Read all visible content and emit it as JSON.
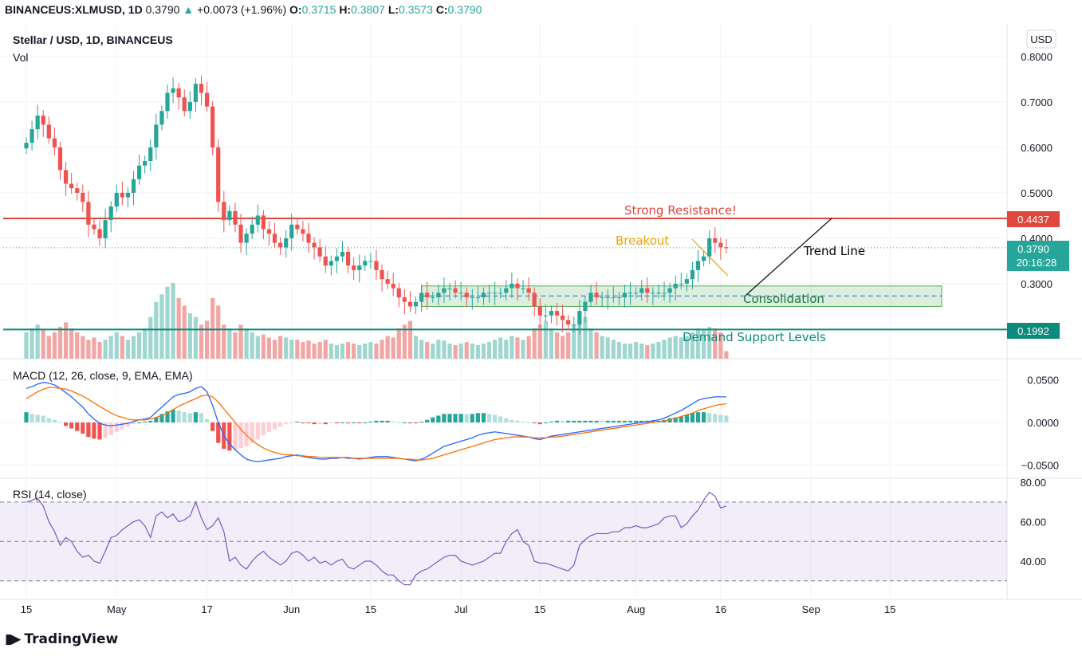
{
  "header": {
    "symbol": "BINANCEUS:XLMUSD, 1D",
    "last": "0.3790",
    "arrow": "▲",
    "change": "+0.0073 (+1.96%)",
    "o_label": "O:",
    "o": "0.3715",
    "h_label": "H:",
    "h": "0.3807",
    "l_label": "L:",
    "l": "0.3573",
    "c_label": "C:",
    "c": "0.3790"
  },
  "pane_titles": {
    "main": "Stellar / USD, 1D, BINANCEUS",
    "vol": "Vol",
    "macd": "MACD (12, 26, close, 9, EMA, EMA)",
    "rsi": "RSI (14, close)"
  },
  "currency_button": "USD",
  "logo_text": "TradingView",
  "colors": {
    "up": "#26a69a",
    "down": "#ef5350",
    "resistance": "#e0473e",
    "support": "#0b8a7d",
    "breakout": "#f0a400",
    "macd": "#2962ff",
    "signal": "#ff6d00",
    "rsi": "#7e57c2"
  },
  "annotations": {
    "resistance": "Strong Resistance!",
    "breakout": "Breakout",
    "trend_line": "Trend Line",
    "consolidation": "Consolidation",
    "demand": "Demand Support Levels"
  },
  "price_labels": {
    "resistance": "0.4437",
    "current": "0.3790",
    "countdown": "20:16:28",
    "support": "0.1992"
  },
  "chart_data": {
    "type": "candlestick",
    "title": "Stellar / USD, 1D, BINANCEUS",
    "price_axis_ticks": [
      "0.8000",
      "0.7000",
      "0.6000",
      "0.5000",
      "0.4000",
      "0.3000"
    ],
    "macd_axis_ticks": [
      "0.0500",
      "0.0000",
      "−0.0500"
    ],
    "rsi_axis_ticks": [
      "80.00",
      "60.00",
      "40.00"
    ],
    "x_ticks": [
      {
        "label": "15",
        "day": 0
      },
      {
        "label": "May",
        "day": 16
      },
      {
        "label": "17",
        "day": 32
      },
      {
        "label": "Jun",
        "day": 47
      },
      {
        "label": "15",
        "day": 61
      },
      {
        "label": "Jul",
        "day": 77
      },
      {
        "label": "15",
        "day": 91
      },
      {
        "label": "Aug",
        "day": 108
      },
      {
        "label": "16",
        "day": 123
      },
      {
        "label": "Sep",
        "day": 139
      },
      {
        "label": "15",
        "day": 153
      }
    ],
    "price_ylim": [
      0.19,
      0.83
    ],
    "series": [
      {
        "name": "XLMUSD",
        "close_by_day": [
          0.61,
          0.64,
          0.67,
          0.65,
          0.62,
          0.6,
          0.55,
          0.52,
          0.51,
          0.5,
          0.48,
          0.43,
          0.42,
          0.4,
          0.44,
          0.47,
          0.5,
          0.49,
          0.5,
          0.53,
          0.56,
          0.57,
          0.6,
          0.65,
          0.68,
          0.72,
          0.73,
          0.71,
          0.68,
          0.7,
          0.74,
          0.72,
          0.69,
          0.6,
          0.48,
          0.44,
          0.46,
          0.43,
          0.39,
          0.41,
          0.43,
          0.45,
          0.42,
          0.41,
          0.39,
          0.38,
          0.4,
          0.43,
          0.42,
          0.41,
          0.39,
          0.38,
          0.36,
          0.34,
          0.35,
          0.36,
          0.37,
          0.34,
          0.33,
          0.34,
          0.35,
          0.35,
          0.33,
          0.31,
          0.3,
          0.29,
          0.27,
          0.26,
          0.25,
          0.26,
          0.28,
          0.27,
          0.27,
          0.28,
          0.29,
          0.29,
          0.28,
          0.28,
          0.27,
          0.27,
          0.27,
          0.28,
          0.28,
          0.28,
          0.28,
          0.29,
          0.3,
          0.29,
          0.29,
          0.28,
          0.25,
          0.23,
          0.23,
          0.24,
          0.23,
          0.22,
          0.21,
          0.21,
          0.24,
          0.26,
          0.28,
          0.27,
          0.27,
          0.27,
          0.27,
          0.27,
          0.28,
          0.28,
          0.28,
          0.29,
          0.28,
          0.28,
          0.28,
          0.28,
          0.29,
          0.3,
          0.3,
          0.31,
          0.33,
          0.35,
          0.36,
          0.4,
          0.39,
          0.38,
          0.379
        ]
      }
    ],
    "volume_relative": [
      0.35,
      0.4,
      0.45,
      0.38,
      0.3,
      0.35,
      0.42,
      0.48,
      0.4,
      0.35,
      0.3,
      0.25,
      0.28,
      0.22,
      0.25,
      0.3,
      0.35,
      0.3,
      0.25,
      0.3,
      0.35,
      0.4,
      0.55,
      0.75,
      0.85,
      0.95,
      1.0,
      0.8,
      0.7,
      0.6,
      0.55,
      0.45,
      0.5,
      0.8,
      0.7,
      0.45,
      0.4,
      0.35,
      0.45,
      0.4,
      0.35,
      0.3,
      0.32,
      0.28,
      0.25,
      0.3,
      0.28,
      0.25,
      0.25,
      0.22,
      0.24,
      0.2,
      0.22,
      0.25,
      0.2,
      0.18,
      0.2,
      0.22,
      0.2,
      0.18,
      0.2,
      0.22,
      0.2,
      0.25,
      0.3,
      0.28,
      0.4,
      0.45,
      0.5,
      0.3,
      0.25,
      0.22,
      0.2,
      0.25,
      0.24,
      0.2,
      0.18,
      0.2,
      0.22,
      0.2,
      0.18,
      0.2,
      0.22,
      0.25,
      0.28,
      0.25,
      0.3,
      0.28,
      0.25,
      0.3,
      0.4,
      0.45,
      0.5,
      0.4,
      0.35,
      0.3,
      0.35,
      0.45,
      0.5,
      0.55,
      0.4,
      0.35,
      0.3,
      0.28,
      0.25,
      0.22,
      0.2,
      0.2,
      0.22,
      0.2,
      0.18,
      0.2,
      0.22,
      0.25,
      0.28,
      0.3,
      0.28,
      0.3,
      0.35,
      0.4,
      0.38,
      0.42,
      0.4,
      0.35,
      0.1
    ],
    "macd_line": [
      0.04,
      0.042,
      0.045,
      0.047,
      0.046,
      0.044,
      0.04,
      0.035,
      0.03,
      0.024,
      0.018,
      0.01,
      0.004,
      -0.001,
      -0.003,
      -0.004,
      -0.003,
      -0.002,
      -0.001,
      0.001,
      0.003,
      0.004,
      0.006,
      0.012,
      0.018,
      0.024,
      0.03,
      0.033,
      0.034,
      0.036,
      0.04,
      0.042,
      0.036,
      0.02,
      0.0,
      -0.015,
      -0.025,
      -0.032,
      -0.038,
      -0.043,
      -0.045,
      -0.046,
      -0.045,
      -0.044,
      -0.043,
      -0.042,
      -0.04,
      -0.039,
      -0.038,
      -0.04,
      -0.041,
      -0.042,
      -0.043,
      -0.043,
      -0.042,
      -0.042,
      -0.041,
      -0.042,
      -0.042,
      -0.043,
      -0.042,
      -0.041,
      -0.04,
      -0.04,
      -0.04,
      -0.041,
      -0.042,
      -0.043,
      -0.044,
      -0.045,
      -0.043,
      -0.04,
      -0.036,
      -0.032,
      -0.028,
      -0.026,
      -0.024,
      -0.022,
      -0.02,
      -0.018,
      -0.015,
      -0.013,
      -0.012,
      -0.011,
      -0.012,
      -0.013,
      -0.014,
      -0.015,
      -0.016,
      -0.017,
      -0.019,
      -0.02,
      -0.018,
      -0.016,
      -0.015,
      -0.014,
      -0.013,
      -0.012,
      -0.011,
      -0.01,
      -0.009,
      -0.008,
      -0.007,
      -0.006,
      -0.005,
      -0.004,
      -0.003,
      -0.002,
      -0.001,
      0.0,
      0.001,
      0.002,
      0.003,
      0.005,
      0.008,
      0.011,
      0.014,
      0.018,
      0.022,
      0.026,
      0.028,
      0.029,
      0.03,
      0.03,
      0.03
    ],
    "signal_line": [
      0.028,
      0.032,
      0.036,
      0.039,
      0.041,
      0.041,
      0.04,
      0.039,
      0.037,
      0.034,
      0.031,
      0.027,
      0.023,
      0.019,
      0.015,
      0.011,
      0.008,
      0.006,
      0.004,
      0.003,
      0.003,
      0.003,
      0.004,
      0.006,
      0.008,
      0.011,
      0.015,
      0.019,
      0.022,
      0.025,
      0.028,
      0.031,
      0.032,
      0.03,
      0.024,
      0.016,
      0.008,
      0.0,
      -0.008,
      -0.015,
      -0.021,
      -0.026,
      -0.03,
      -0.033,
      -0.035,
      -0.037,
      -0.038,
      -0.038,
      -0.039,
      -0.039,
      -0.04,
      -0.04,
      -0.041,
      -0.041,
      -0.041,
      -0.041,
      -0.041,
      -0.041,
      -0.042,
      -0.042,
      -0.042,
      -0.042,
      -0.042,
      -0.042,
      -0.042,
      -0.042,
      -0.042,
      -0.043,
      -0.043,
      -0.044,
      -0.044,
      -0.043,
      -0.042,
      -0.04,
      -0.038,
      -0.036,
      -0.034,
      -0.032,
      -0.03,
      -0.028,
      -0.026,
      -0.024,
      -0.022,
      -0.02,
      -0.019,
      -0.018,
      -0.017,
      -0.017,
      -0.017,
      -0.017,
      -0.018,
      -0.018,
      -0.018,
      -0.017,
      -0.017,
      -0.016,
      -0.015,
      -0.014,
      -0.013,
      -0.012,
      -0.011,
      -0.01,
      -0.009,
      -0.008,
      -0.007,
      -0.006,
      -0.005,
      -0.004,
      -0.003,
      -0.002,
      -0.001,
      0.0,
      0.001,
      0.002,
      0.003,
      0.005,
      0.007,
      0.009,
      0.011,
      0.014,
      0.016,
      0.018,
      0.02,
      0.021,
      0.022
    ],
    "rsi": [
      70,
      71,
      72,
      68,
      60,
      55,
      48,
      52,
      50,
      45,
      42,
      43,
      40,
      39,
      45,
      52,
      53,
      56,
      58,
      60,
      61,
      58,
      52,
      63,
      65,
      62,
      64,
      60,
      61,
      63,
      70,
      62,
      56,
      58,
      62,
      55,
      40,
      42,
      38,
      36,
      40,
      43,
      45,
      42,
      40,
      38,
      40,
      44,
      45,
      43,
      40,
      42,
      39,
      40,
      38,
      40,
      41,
      37,
      36,
      38,
      40,
      40,
      38,
      35,
      33,
      33,
      30,
      28,
      28,
      33,
      35,
      36,
      38,
      40,
      42,
      43,
      43,
      40,
      39,
      38,
      39,
      40,
      42,
      44,
      44,
      50,
      54,
      56,
      50,
      48,
      40,
      39,
      39,
      38,
      37,
      36,
      35,
      38,
      48,
      51,
      53,
      54,
      54,
      54,
      55,
      55,
      57,
      57,
      58,
      57,
      57,
      58,
      59,
      62,
      63,
      63,
      57,
      59,
      63,
      66,
      71,
      75,
      73,
      67,
      68
    ],
    "rsi_levels": [
      70,
      50,
      30
    ],
    "levels": {
      "resistance": 0.4437,
      "support": 0.1992,
      "consolidation_top": 0.295,
      "consolidation_bottom": 0.25,
      "consolidation_mid": 0.273
    }
  }
}
